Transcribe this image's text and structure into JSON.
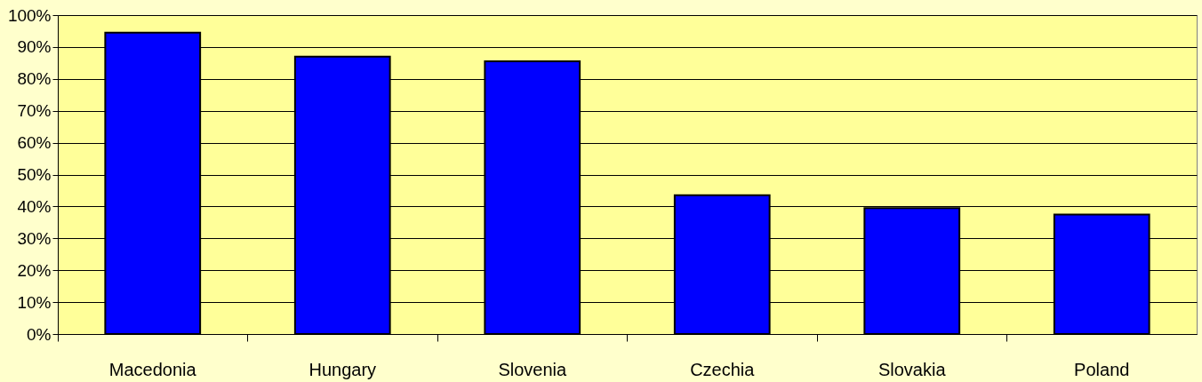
{
  "chart_data": {
    "type": "bar",
    "categories": [
      "Macedonia",
      "Hungary",
      "Slovenia",
      "Czechia",
      "Slovakia",
      "Poland"
    ],
    "values": [
      94.5,
      87,
      85.5,
      43.5,
      39.5,
      37.5
    ],
    "color": "#0000ff",
    "ylim": [
      0,
      100
    ],
    "yticks": [
      {
        "value": 0,
        "label": "0%"
      },
      {
        "value": 10,
        "label": "10%"
      },
      {
        "value": 20,
        "label": "20%"
      },
      {
        "value": 30,
        "label": "30%"
      },
      {
        "value": 40,
        "label": "40%"
      },
      {
        "value": 50,
        "label": "50%"
      },
      {
        "value": 60,
        "label": "60%"
      },
      {
        "value": 70,
        "label": "70%"
      },
      {
        "value": 80,
        "label": "80%"
      },
      {
        "value": 90,
        "label": "90%"
      },
      {
        "value": 100,
        "label": "100%"
      }
    ],
    "grid": "y"
  }
}
